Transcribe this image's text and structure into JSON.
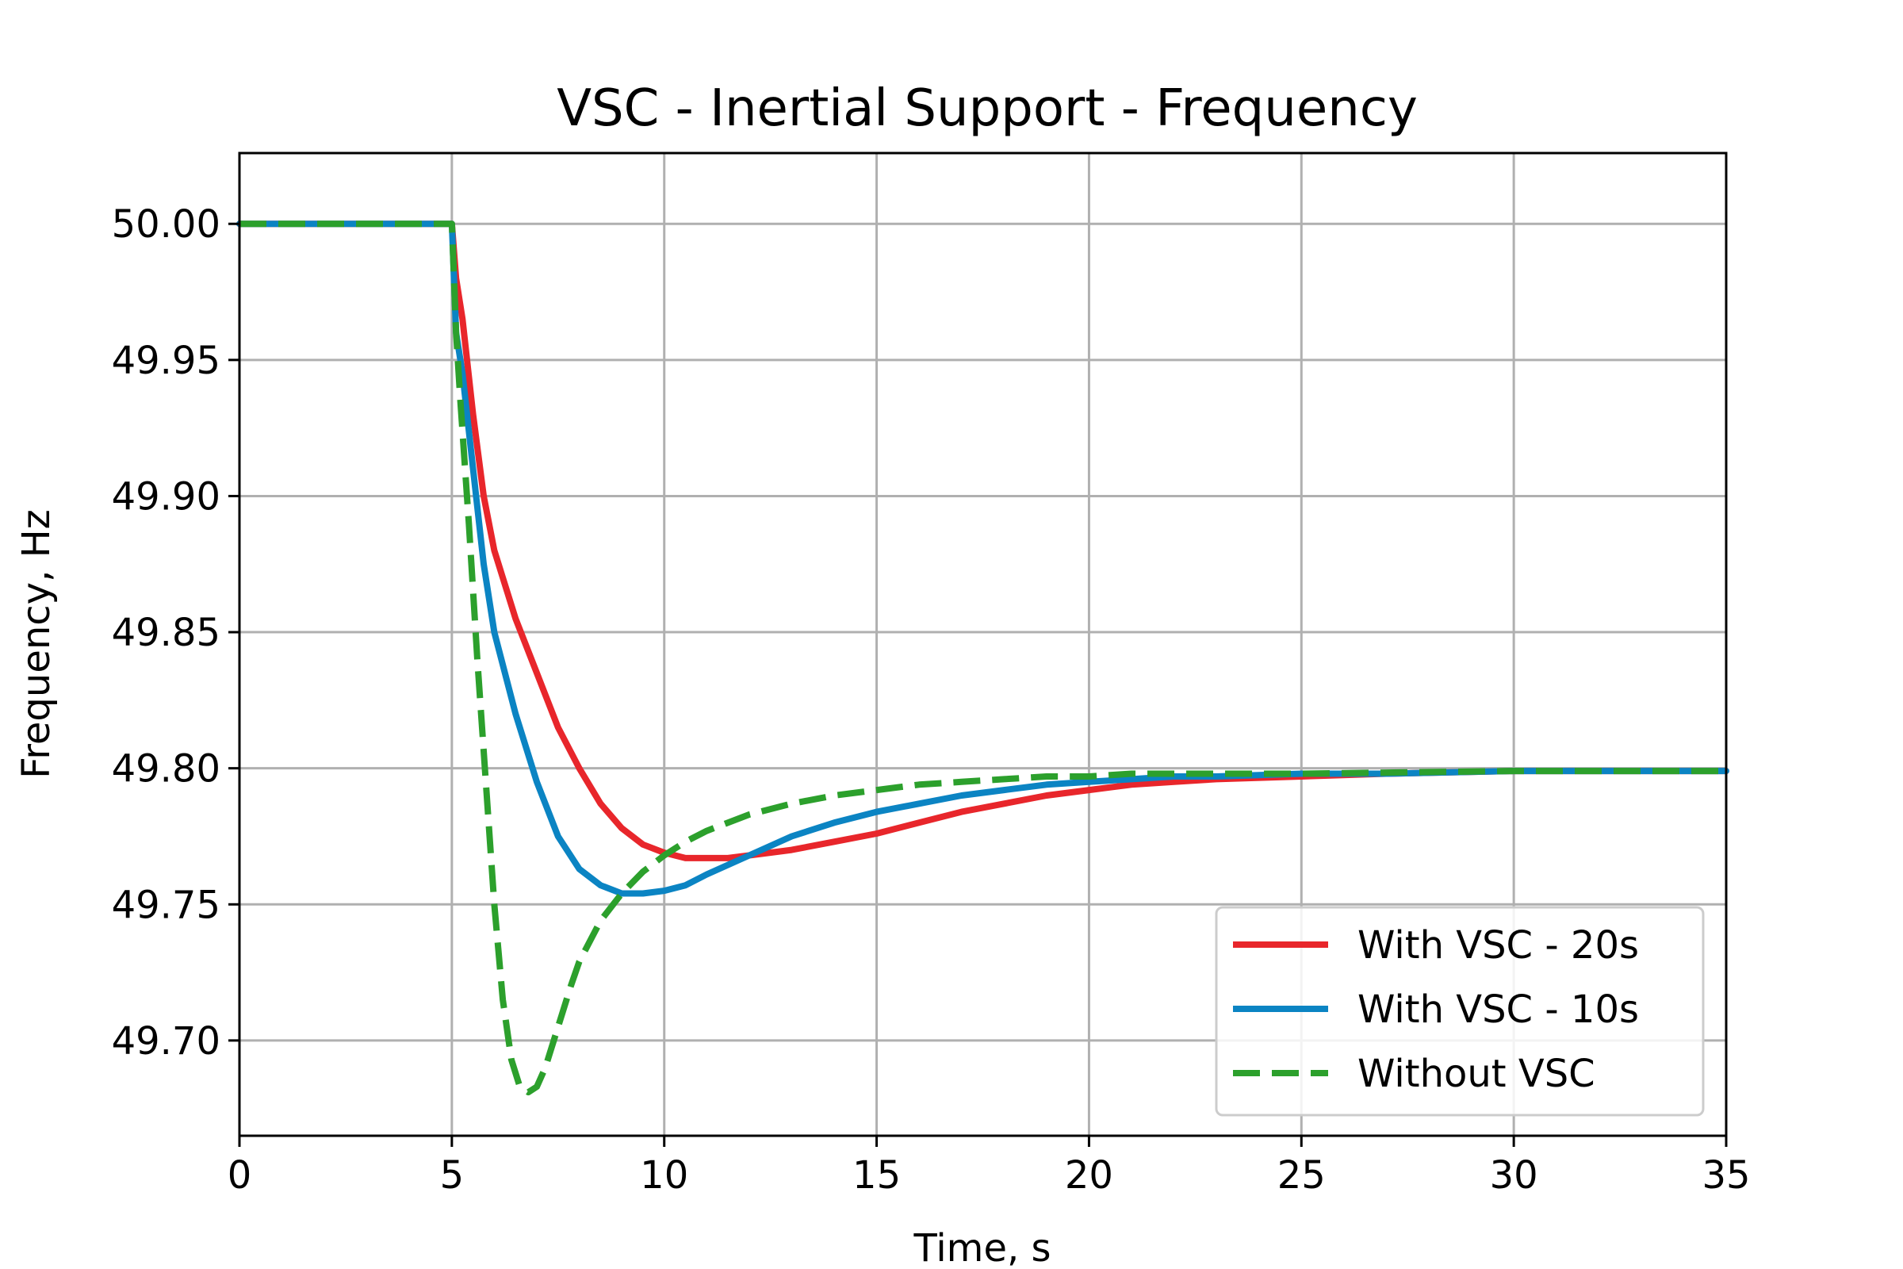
{
  "chart_data": {
    "type": "line",
    "title": "VSC - Inertial Support - Frequency",
    "xlabel": "Time, s",
    "ylabel": "Frequency, Hz",
    "xlim": [
      0,
      35
    ],
    "ylim": [
      49.665,
      50.026
    ],
    "xticks": [
      "0",
      "5",
      "10",
      "15",
      "20",
      "25",
      "30",
      "35"
    ],
    "yticks": [
      "49.70",
      "49.75",
      "49.80",
      "49.85",
      "49.90",
      "49.95",
      "50.00"
    ],
    "grid": true,
    "legend": "lower-right",
    "series": [
      {
        "name": "With VSC - 20s",
        "color": "#e8262b",
        "style": "solid",
        "x": [
          0,
          5,
          5.1,
          5.25,
          5.5,
          5.75,
          6,
          6.5,
          7,
          7.5,
          8,
          8.5,
          9,
          9.5,
          10,
          10.5,
          11,
          11.5,
          12,
          13,
          14,
          15,
          16,
          17,
          18,
          19,
          20,
          21,
          22,
          23,
          25,
          27,
          30,
          35
        ],
        "y": [
          50.0,
          50.0,
          49.98,
          49.965,
          49.93,
          49.9,
          49.88,
          49.855,
          49.835,
          49.815,
          49.8,
          49.787,
          49.778,
          49.772,
          49.769,
          49.767,
          49.767,
          49.767,
          49.768,
          49.77,
          49.773,
          49.776,
          49.78,
          49.784,
          49.787,
          49.79,
          49.792,
          49.794,
          49.795,
          49.796,
          49.797,
          49.798,
          49.799,
          49.799
        ]
      },
      {
        "name": "With VSC - 10s",
        "color": "#0b84c3",
        "style": "solid",
        "x": [
          0,
          5,
          5.1,
          5.25,
          5.5,
          5.75,
          6,
          6.5,
          7,
          7.5,
          8,
          8.5,
          9,
          9.5,
          10,
          10.5,
          11,
          12,
          13,
          14,
          15,
          16,
          17,
          18,
          19,
          20,
          21,
          22,
          23,
          25,
          27,
          30,
          35
        ],
        "y": [
          50.0,
          50.0,
          49.96,
          49.945,
          49.91,
          49.875,
          49.85,
          49.82,
          49.795,
          49.775,
          49.763,
          49.757,
          49.754,
          49.754,
          49.755,
          49.757,
          49.761,
          49.768,
          49.775,
          49.78,
          49.784,
          49.787,
          49.79,
          49.792,
          49.794,
          49.795,
          49.796,
          49.797,
          49.797,
          49.798,
          49.798,
          49.799,
          49.799
        ]
      },
      {
        "name": "Without VSC",
        "color": "#2ca02c",
        "style": "dashed",
        "x": [
          0,
          5,
          5.1,
          5.2,
          5.4,
          5.6,
          5.8,
          6,
          6.2,
          6.4,
          6.6,
          6.8,
          7,
          7.2,
          7.5,
          7.8,
          8,
          8.5,
          9,
          9.5,
          10,
          10.5,
          11,
          12,
          13,
          14,
          15,
          16,
          17,
          18,
          19,
          20,
          21,
          22,
          25,
          30,
          35
        ],
        "y": [
          50.0,
          50.0,
          49.96,
          49.935,
          49.89,
          49.84,
          49.795,
          49.75,
          49.715,
          49.693,
          49.683,
          49.681,
          49.683,
          49.69,
          49.705,
          49.72,
          49.729,
          49.744,
          49.754,
          49.762,
          49.768,
          49.773,
          49.777,
          49.783,
          49.787,
          49.79,
          49.792,
          49.794,
          49.795,
          49.796,
          49.797,
          49.797,
          49.798,
          49.798,
          49.798,
          49.799,
          49.799
        ]
      }
    ]
  }
}
